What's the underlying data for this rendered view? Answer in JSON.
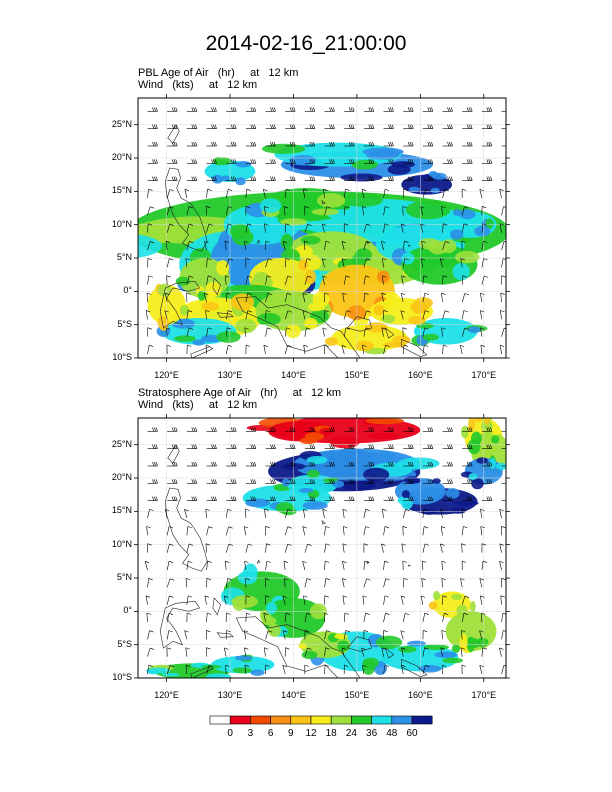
{
  "title": "2014-02-16_21:00:00",
  "panels": [
    {
      "id": "pbl",
      "var_line": "PBL Age of Air   (hr)     at   12 km",
      "wind_line": "Wind   (kts)     at   12 km"
    },
    {
      "id": "strat",
      "var_line": "Stratosphere Age of Air   (hr)     at   12 km",
      "wind_line": "Wind   (kts)     at   12 km"
    }
  ],
  "map": {
    "lon_range": [
      115.5,
      173.5
    ],
    "lat_range": [
      -10,
      29
    ],
    "lon_ticks": [
      {
        "v": 120,
        "label": "120°E"
      },
      {
        "v": 130,
        "label": "130°E"
      },
      {
        "v": 140,
        "label": "140°E"
      },
      {
        "v": 150,
        "label": "150°E"
      },
      {
        "v": 160,
        "label": "160°E"
      },
      {
        "v": 170,
        "label": "170°E"
      }
    ],
    "lat_ticks": [
      {
        "v": 25,
        "label": "25°N"
      },
      {
        "v": 20,
        "label": "20°N"
      },
      {
        "v": 15,
        "label": "15°N"
      },
      {
        "v": 10,
        "label": "10°N"
      },
      {
        "v": 5,
        "label": "5°N"
      },
      {
        "v": 0,
        "label": "0°"
      },
      {
        "v": -5,
        "label": "5°S"
      },
      {
        "v": -10,
        "label": "10°S"
      }
    ]
  },
  "colorbar": {
    "levels": [
      "0",
      "3",
      "6",
      "9",
      "12",
      "18",
      "24",
      "36",
      "48",
      "60"
    ],
    "colors": [
      "#ffffff",
      "#e8001a",
      "#f24a00",
      "#f78f12",
      "#fac515",
      "#f5ee1c",
      "#9fe03a",
      "#22c92a",
      "#1de0e8",
      "#2c8fe8",
      "#0e1a8a"
    ]
  }
}
